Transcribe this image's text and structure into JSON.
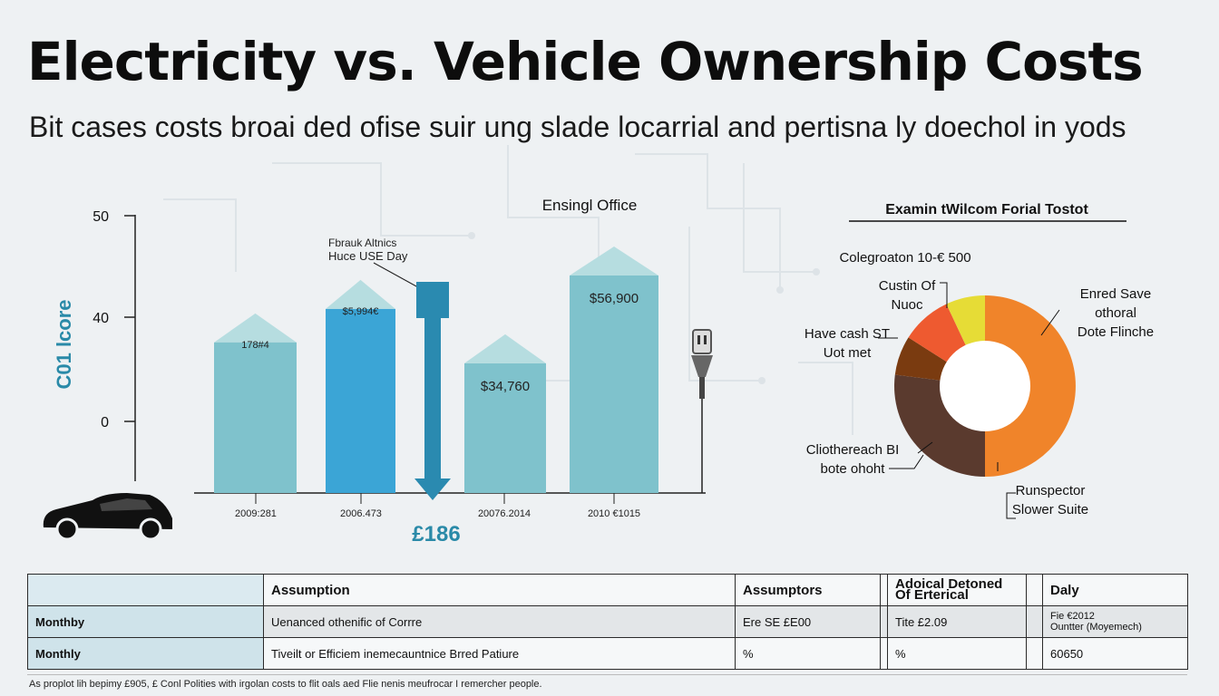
{
  "title": "Electricity vs. Vehicle Ownership Costs",
  "subtitle": "Bit cases costs broai ded ofise suir ung slade locarrial and pertisna ly doechol in yods",
  "colors": {
    "bar_light": "#7fc2cc",
    "bar_blue": "#3ba5d6",
    "pie_orange": "#f0842a",
    "pie_brown": "#5a3a2e",
    "pie_darkbrown": "#7a3b10",
    "pie_red": "#ee5a30",
    "pie_yellow": "#e6dc36",
    "accent": "#2a8aa8"
  },
  "chart_data": [
    {
      "type": "bar",
      "title": "Ensingl Office",
      "ylabel": "C01 lcore",
      "y_ticks": [
        "50",
        "40",
        "0"
      ],
      "categories": [
        "2009:281",
        "2006.473",
        "20076.2014",
        "2010 €1015"
      ],
      "bar_labels": [
        "178#4",
        "$5,994€",
        "$34,760",
        "$56,900"
      ],
      "values": [
        36,
        44,
        31,
        52
      ],
      "annotation": {
        "label_line1": "Fbrauk Altnics",
        "label_line2": "Huce USE Day",
        "value": "£186",
        "icons": [
          "car-icon",
          "plug-icon"
        ]
      }
    },
    {
      "type": "pie",
      "title": "Examin tWilcom Forial Tostot",
      "top_label": "Colegroaton 10-€ 500",
      "slices": [
        {
          "label": "Enred Save othoral Dote Flinche",
          "label_lines": [
            "Enred Save",
            "othoral",
            "Dote Flinche"
          ],
          "value": 50,
          "color": "#f0842a"
        },
        {
          "label": "Runspector Slower Suite",
          "label_lines": [
            "Runspector",
            "Slower Suite"
          ],
          "value": 0,
          "color": "#f0842a"
        },
        {
          "label": "Cliothereach BI bote ohoht",
          "label_lines": [
            "Cliothereach BI",
            "bote ohoht"
          ],
          "value": 27,
          "color": "#5a3a2e"
        },
        {
          "label": "Have cash ST Uot met",
          "label_lines": [
            "Have cash ST",
            "Uot met"
          ],
          "value": 7,
          "color": "#7a3b10"
        },
        {
          "label": "Custin Of Nuoc",
          "label_lines": [
            "Custin Of",
            "Nuoc"
          ],
          "value": 9,
          "color": "#ee5a30"
        },
        {
          "label": "",
          "label_lines": [],
          "value": 7,
          "color": "#e6dc36"
        }
      ]
    }
  ],
  "table": {
    "headers": [
      "",
      "Assumption",
      "Assumptors",
      "Adoical Detoned Of Erterical",
      "Daly"
    ],
    "rows": [
      {
        "label": "Monthby",
        "c1": "Uenanced othenific of Corrre",
        "c2": "Ere SE £E00",
        "c3": "Tite £2.09",
        "c4a": "Fie €2012",
        "c4b": "Ountter (Moyemech)"
      },
      {
        "label": "Monthly",
        "c1": "Tiveilt or Efficiem inemecauntnice Brred Patiure",
        "c2": "%",
        "c3": "%",
        "c4a": "60650",
        "c4b": ""
      }
    ]
  },
  "footnote": "As proplot lih bepimy £905, £ Conl Polities with irgolan costs to flit oals aed Flie nenis meufrocar I remercher people."
}
